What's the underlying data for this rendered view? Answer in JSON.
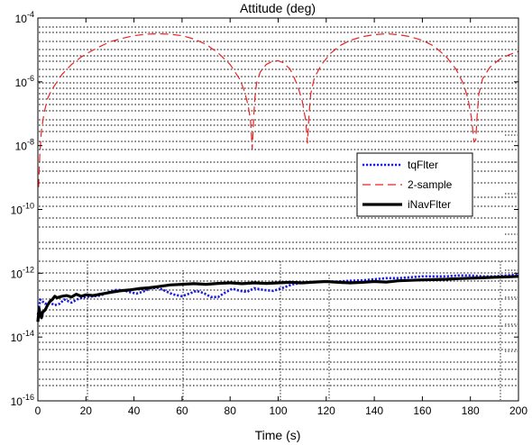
{
  "chart_data": {
    "type": "line",
    "title": "Attitude (deg)",
    "xlabel": "Time (s)",
    "ylabel": "",
    "xlim": [
      0,
      200
    ],
    "ylim": [
      1e-16,
      0.0001
    ],
    "yscale": "log",
    "grid": "dotted, irregular",
    "legend_position": "center-right",
    "x_ticks": [
      0,
      20,
      40,
      60,
      80,
      100,
      120,
      140,
      160,
      180,
      200
    ],
    "y_ticks": [
      {
        "value": 1e-16,
        "base": "10",
        "exp": "-16"
      },
      {
        "value": 1e-14,
        "base": "10",
        "exp": "-14"
      },
      {
        "value": 1e-12,
        "base": "10",
        "exp": "-12"
      },
      {
        "value": 1e-10,
        "base": "10",
        "exp": "-10"
      },
      {
        "value": 1e-08,
        "base": "10",
        "exp": "-8"
      },
      {
        "value": 1e-06,
        "base": "10",
        "exp": "-6"
      },
      {
        "value": 0.0001,
        "base": "10",
        "exp": "-4"
      }
    ],
    "series": [
      {
        "name": "tqFlter",
        "color": "#1a1ae6",
        "style": "dotted",
        "x": [
          0,
          1,
          2,
          3,
          5,
          7,
          9,
          11,
          14,
          17,
          20,
          23,
          26,
          29,
          32,
          35,
          38,
          41,
          44,
          47,
          50,
          53,
          56,
          60,
          63,
          66,
          69,
          72,
          75,
          78,
          81,
          84,
          87,
          90,
          94,
          98,
          102,
          106,
          110,
          115,
          120,
          125,
          130,
          135,
          140,
          145,
          150,
          155,
          160,
          165,
          170,
          175,
          180,
          185,
          190,
          195,
          200
        ],
        "y": [
          5e-14,
          1.5e-13,
          1.3e-13,
          1.1e-13,
          1.2e-13,
          1e-13,
          1.1e-13,
          1.5e-13,
          1.2e-13,
          1.6e-13,
          1.8e-13,
          1.9e-13,
          2e-13,
          2.5e-13,
          3e-13,
          3e-13,
          2.6e-13,
          2.3e-13,
          2.7e-13,
          3.4e-13,
          3.5e-13,
          2.8e-13,
          2.2e-13,
          1.9e-13,
          2.3e-13,
          2.8e-13,
          2.4e-13,
          1.8e-13,
          1.8e-13,
          2.5e-13,
          3.3e-13,
          2.8e-13,
          2.6e-13,
          3.4e-13,
          3e-13,
          2.8e-13,
          3.5e-13,
          4.5e-13,
          5e-13,
          5.2e-13,
          5.5e-13,
          5.5e-13,
          5.8e-13,
          6e-13,
          6.5e-13,
          7e-13,
          7e-13,
          7.5e-13,
          8e-13,
          8e-13,
          8e-13,
          8.5e-13,
          8.5e-13,
          8e-13,
          8e-13,
          8.5e-13,
          9e-13
        ]
      },
      {
        "name": "2-sample",
        "color": "#ee2222",
        "style": "dashed",
        "x": [
          0.3,
          0.8,
          1.5,
          2.5,
          4,
          6,
          8,
          10,
          14,
          18,
          22,
          26,
          30,
          35,
          40,
          45,
          50,
          55,
          60,
          65,
          70,
          75,
          80,
          84,
          86,
          87.5,
          88.5,
          89.2,
          89.8,
          90.3,
          91,
          92.5,
          95,
          98,
          100,
          102,
          105,
          108,
          110,
          111.5,
          112.2,
          112.8,
          113.5,
          115,
          118,
          122,
          126,
          130,
          135,
          140,
          145,
          150,
          155,
          160,
          165,
          170,
          174,
          177,
          179,
          180.5,
          181.5,
          182.2,
          182.8,
          183.5,
          185,
          188,
          192,
          196,
          200
        ],
        "y": [
          5e-10,
          5e-09,
          3e-08,
          1e-07,
          3e-07,
          6e-07,
          1e-06,
          1.7e-06,
          3.5e-06,
          6e-06,
          9e-06,
          1.3e-05,
          1.8e-05,
          2.3e-05,
          2.8e-05,
          3.1e-05,
          3.2e-05,
          3.1e-05,
          2.8e-05,
          2.2e-05,
          1.5e-05,
          8e-06,
          3.5e-06,
          1.2e-06,
          5e-07,
          1.8e-07,
          6e-08,
          8e-09,
          7e-08,
          3e-07,
          9e-07,
          2e-06,
          3.5e-06,
          4.5e-06,
          4.6e-06,
          4e-06,
          2.5e-06,
          8e-07,
          2.5e-07,
          6e-08,
          1.2e-08,
          8e-08,
          4e-07,
          1.3e-06,
          3.5e-06,
          8e-06,
          1.4e-05,
          2e-05,
          2.6e-05,
          3e-05,
          3.2e-05,
          3e-05,
          2.6e-05,
          2e-05,
          1.3e-05,
          6e-06,
          2.5e-06,
          9e-07,
          3e-07,
          7e-08,
          1.3e-08,
          1.5e-08,
          9e-08,
          4e-07,
          1.2e-06,
          2.8e-06,
          5e-06,
          7e-06,
          9e-06
        ]
      },
      {
        "name": "iNavFlter",
        "color": "#000000",
        "style": "solid",
        "x": [
          0,
          0.5,
          1,
          1.5,
          2,
          3,
          4,
          5,
          6,
          7,
          8,
          9,
          10,
          12,
          14,
          16,
          18,
          20,
          23,
          26,
          30,
          34,
          38,
          42,
          46,
          50,
          55,
          60,
          65,
          70,
          75,
          80,
          85,
          90,
          95,
          100,
          105,
          110,
          115,
          120,
          125,
          130,
          135,
          140,
          145,
          150,
          155,
          160,
          165,
          170,
          175,
          180,
          185,
          190,
          195,
          200
        ],
        "y": [
          3e-14,
          8e-14,
          5e-14,
          4e-14,
          6e-14,
          7e-14,
          1e-13,
          1.3e-13,
          1.5e-13,
          1.9e-13,
          1.7e-13,
          1.8e-13,
          1.9e-13,
          2e-13,
          1.8e-13,
          2.2e-13,
          1.9e-13,
          2.1e-13,
          2e-13,
          2.2e-13,
          2.5e-13,
          2.8e-13,
          3e-13,
          3.3e-13,
          3.5e-13,
          3.8e-13,
          4.3e-13,
          4.5e-13,
          4.7e-13,
          4.5e-13,
          4.8e-13,
          5e-13,
          4.7e-13,
          5e-13,
          4.8e-13,
          5e-13,
          5.2e-13,
          5e-13,
          5.3e-13,
          5.5e-13,
          5.2e-13,
          5e-13,
          5.2e-13,
          5.5e-13,
          5.3e-13,
          5.8e-13,
          6e-13,
          6.2e-13,
          6.3e-13,
          6.5e-13,
          6.8e-13,
          7e-13,
          7.2e-13,
          7.5e-13,
          7.7e-13,
          8e-13
        ]
      }
    ]
  }
}
